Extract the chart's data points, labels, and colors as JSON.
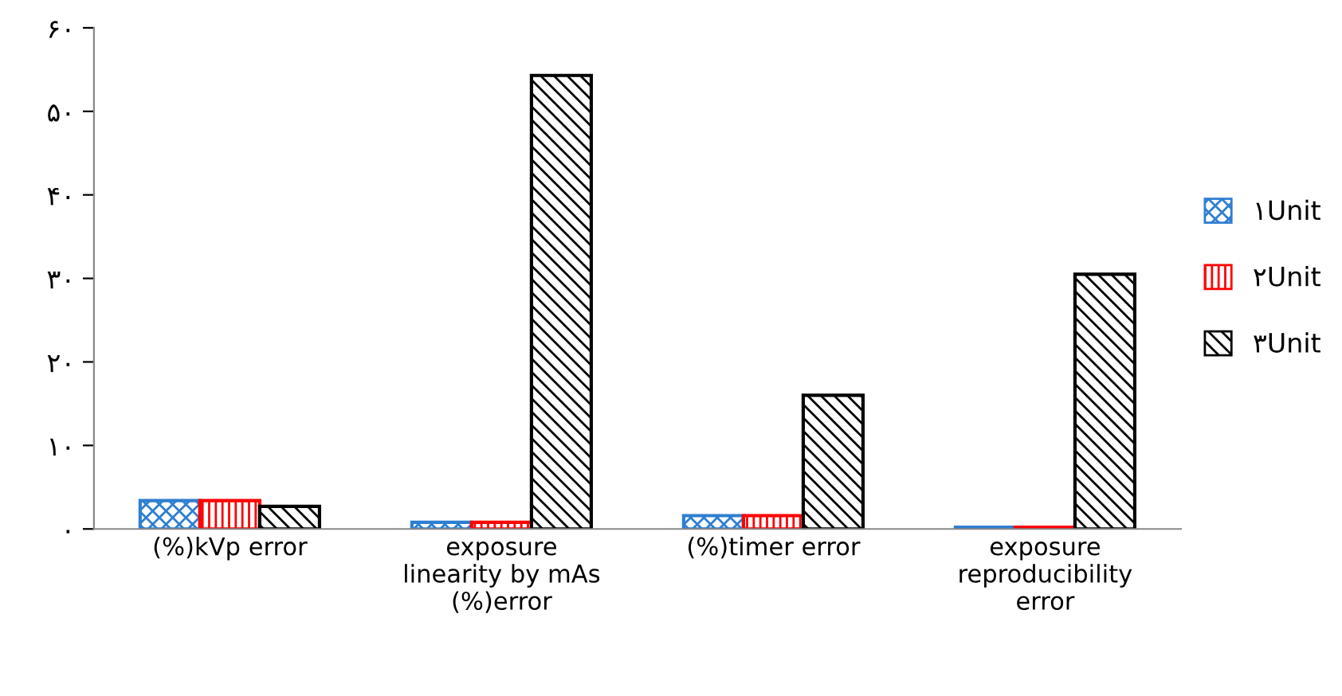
{
  "chart_data": {
    "type": "bar",
    "categories": [
      "(%)kVp error",
      "exposure\nlinearity by mAs\n(%)error",
      "(%)timer error",
      "exposure\nreproducibility\nerror"
    ],
    "series": [
      {
        "name": "۱Unit",
        "color": "#2e7fd0",
        "values": [
          3.4,
          0.8,
          1.6,
          0.2
        ]
      },
      {
        "name": "۲Unit",
        "color": "#ff0000",
        "values": [
          3.4,
          0.8,
          1.6,
          0.2
        ]
      },
      {
        "name": "۳Unit",
        "color": "#000000",
        "values": [
          2.7,
          54.3,
          16.0,
          30.5
        ]
      }
    ],
    "ylim": [
      0,
      60
    ],
    "yticks": [
      {
        "value": 0,
        "label": "۰"
      },
      {
        "value": 10,
        "label": "۱۰"
      },
      {
        "value": 20,
        "label": "۲۰"
      },
      {
        "value": 30,
        "label": "۳۰"
      },
      {
        "value": 40,
        "label": "۴۰"
      },
      {
        "value": 50,
        "label": "۵۰"
      },
      {
        "value": 60,
        "label": "۶۰"
      }
    ],
    "grid": false,
    "legend": "right"
  }
}
